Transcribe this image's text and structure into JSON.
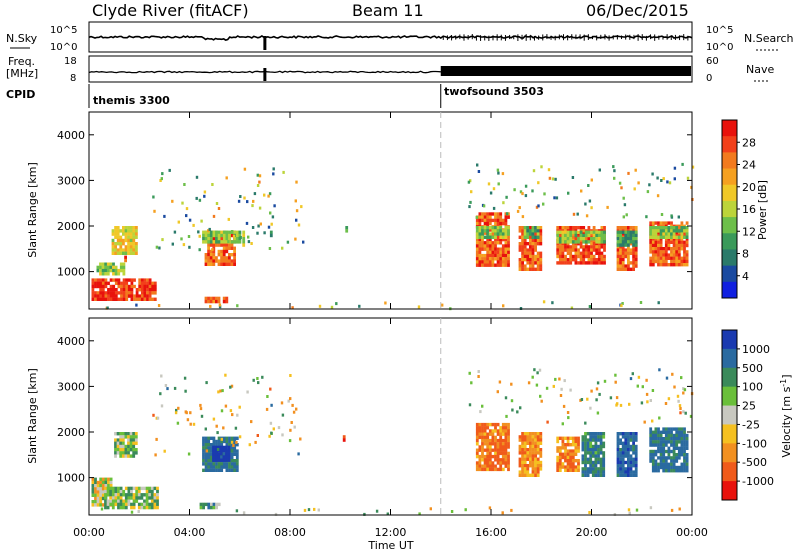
{
  "header": {
    "station": "Clyde River (fitACF)",
    "beam": "Beam 11",
    "date": "06/Dec/2015"
  },
  "top_panels": {
    "nsky_label": "N.Sky",
    "nsky_ticks": [
      "10^5",
      "10^0"
    ],
    "nsearch_label": "N.Search",
    "nsearch_ticks": [
      "10^5",
      "10^0"
    ],
    "freq_label": "Freq.",
    "freq_unit": "[MHz]",
    "freq_ticks": [
      "18",
      "8"
    ],
    "nave_label": "Nave",
    "nave_ticks": [
      "60",
      "0"
    ],
    "cpid_label": "CPID",
    "cpid_segments": [
      {
        "name": "themis 3300",
        "start_hour": 0,
        "end_hour": 14
      },
      {
        "name": "twofsound 3503",
        "start_hour": 14,
        "end_hour": 24
      }
    ],
    "nave_low_until_hour": 14
  },
  "x_axis": {
    "label": "Time UT",
    "ticks": [
      "00:00",
      "04:00",
      "08:00",
      "12:00",
      "16:00",
      "20:00",
      "00:00"
    ],
    "range_hours": [
      0,
      24
    ]
  },
  "power_panel": {
    "ylabel": "Slant Range [km]",
    "yticks": [
      "4000",
      "3000",
      "2000",
      "1000"
    ],
    "ylim": [
      180,
      4500
    ],
    "colorbar_label": "Power [dB]",
    "colorbar_ticks": [
      "28",
      "24",
      "20",
      "16",
      "12",
      "8",
      "4"
    ],
    "colorbar_colors": [
      "#e8120c",
      "#f2401a",
      "#f27a1e",
      "#f5a020",
      "#f0c828",
      "#bcd43a",
      "#6dbf4a",
      "#3a9a5a",
      "#2a7a6a",
      "#1a4aa0",
      "#1020e0"
    ]
  },
  "velocity_panel": {
    "ylabel": "Slant Range [km]",
    "yticks": [
      "4000",
      "3000",
      "2000",
      "1000"
    ],
    "ylim": [
      180,
      4500
    ],
    "colorbar_label": "Velocity [m s^-1]",
    "colorbar_ticks": [
      "1000",
      "500",
      "100",
      "25",
      "-25",
      "-100",
      "-500",
      "-1000"
    ],
    "colorbar_colors": [
      "#1a3ab0",
      "#2a6aa0",
      "#3a8a5a",
      "#6abf3a",
      "#c8c8c0",
      "#f5c020",
      "#f29020",
      "#f05a1a",
      "#e8120c"
    ]
  },
  "chart_data": {
    "type": "heatmap",
    "x_unit": "hours UT",
    "y_unit": "km",
    "power_blobs": [
      {
        "t0": 0.1,
        "t1": 2.7,
        "r0": 300,
        "r1": 850,
        "level": 28
      },
      {
        "t0": 0.3,
        "t1": 1.5,
        "r0": 850,
        "r1": 1200,
        "level": 14
      },
      {
        "t0": 0.9,
        "t1": 2.0,
        "r0": 1300,
        "r1": 2000,
        "level": 18
      },
      {
        "t0": 1.4,
        "t1": 1.6,
        "r0": 1150,
        "r1": 1350,
        "level": 28
      },
      {
        "t0": 4.6,
        "t1": 5.9,
        "r0": 1100,
        "r1": 1900,
        "level": 26
      },
      {
        "t0": 4.5,
        "t1": 6.1,
        "r0": 1600,
        "r1": 1900,
        "level": 14
      },
      {
        "t0": 4.6,
        "t1": 5.6,
        "r0": 300,
        "r1": 450,
        "level": 26
      },
      {
        "t0": 6.1,
        "t1": 6.2,
        "r0": 1500,
        "r1": 1900,
        "level": 16
      },
      {
        "t0": 7.2,
        "t1": 7.4,
        "r0": 1700,
        "r1": 1900,
        "level": 10
      },
      {
        "t0": 10.2,
        "t1": 10.3,
        "r0": 1800,
        "r1": 2000,
        "level": 12
      },
      {
        "t0": 15.4,
        "t1": 16.8,
        "r0": 1100,
        "r1": 2300,
        "level": 26
      },
      {
        "t0": 15.4,
        "t1": 16.8,
        "r0": 1700,
        "r1": 2000,
        "level": 14
      },
      {
        "t0": 17.1,
        "t1": 18.1,
        "r0": 1000,
        "r1": 2000,
        "level": 26
      },
      {
        "t0": 17.3,
        "t1": 18.0,
        "r0": 1700,
        "r1": 2000,
        "level": 12
      },
      {
        "t0": 18.6,
        "t1": 20.6,
        "r0": 1100,
        "r1": 2000,
        "level": 26
      },
      {
        "t0": 18.6,
        "t1": 20.6,
        "r0": 1600,
        "r1": 1900,
        "level": 14
      },
      {
        "t0": 21.0,
        "t1": 21.9,
        "r0": 1000,
        "r1": 2000,
        "level": 26
      },
      {
        "t0": 21.0,
        "t1": 21.9,
        "r0": 1500,
        "r1": 1900,
        "level": 10
      },
      {
        "t0": 22.3,
        "t1": 23.9,
        "r0": 1100,
        "r1": 2100,
        "level": 26
      },
      {
        "t0": 22.3,
        "t1": 23.9,
        "r0": 1700,
        "r1": 2000,
        "level": 14
      }
    ],
    "velocity_blobs": [
      {
        "t0": 0.1,
        "t1": 1.0,
        "r0": 350,
        "r1": 1000,
        "level": 0
      },
      {
        "t0": 0.6,
        "t1": 2.8,
        "r0": 250,
        "r1": 800,
        "level": 100
      },
      {
        "t0": 1.0,
        "t1": 2.0,
        "r0": 1400,
        "r1": 2000,
        "level": 100
      },
      {
        "t0": 4.5,
        "t1": 6.0,
        "r0": 1100,
        "r1": 1900,
        "level": 500
      },
      {
        "t0": 4.9,
        "t1": 5.7,
        "r0": 1300,
        "r1": 1700,
        "level": 1000
      },
      {
        "t0": 4.4,
        "t1": 5.3,
        "r0": 250,
        "r1": 450,
        "level": 200
      },
      {
        "t0": 10.1,
        "t1": 10.3,
        "r0": 1700,
        "r1": 2000,
        "level": -800
      },
      {
        "t0": 15.4,
        "t1": 16.8,
        "r0": 1100,
        "r1": 2200,
        "level": -400
      },
      {
        "t0": 17.1,
        "t1": 18.1,
        "r0": 1000,
        "r1": 2000,
        "level": -300
      },
      {
        "t0": 18.6,
        "t1": 19.6,
        "r0": 1100,
        "r1": 1900,
        "level": -300
      },
      {
        "t0": 19.6,
        "t1": 20.6,
        "r0": 1000,
        "r1": 2000,
        "level": 400
      },
      {
        "t0": 21.0,
        "t1": 21.9,
        "r0": 1000,
        "r1": 2000,
        "level": 600
      },
      {
        "t0": 22.3,
        "t1": 23.9,
        "r0": 1100,
        "r1": 2100,
        "level": 500
      }
    ],
    "sparse_windows": [
      {
        "t0": 0.0,
        "t1": 14.0,
        "r0": 220,
        "r1": 350
      },
      {
        "t0": 2.5,
        "t1": 8.5,
        "r0": 1500,
        "r1": 3300
      },
      {
        "t0": 15.0,
        "t1": 24.0,
        "r0": 2200,
        "r1": 3400
      },
      {
        "t0": 14.0,
        "t1": 24.0,
        "r0": 220,
        "r1": 380
      }
    ]
  }
}
